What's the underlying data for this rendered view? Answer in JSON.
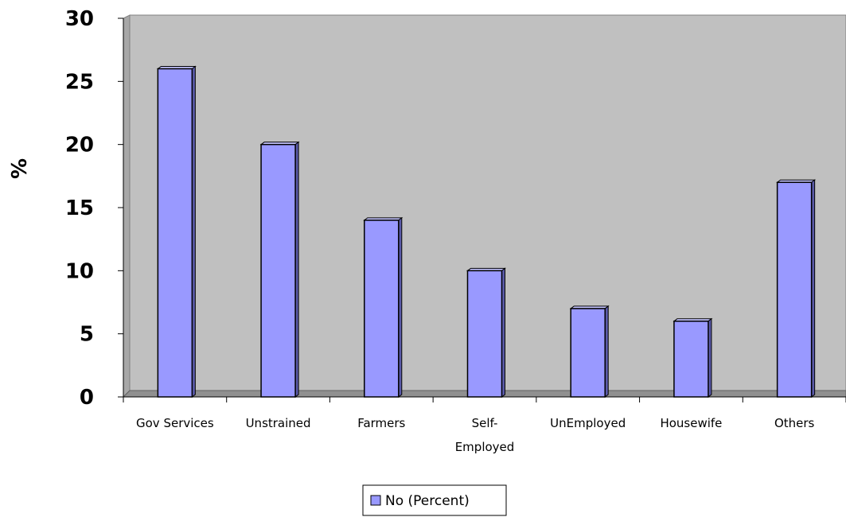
{
  "chart_data": {
    "type": "bar",
    "ylabel": "%",
    "xlabel": "",
    "title": "",
    "categories": [
      [
        "Gov Services"
      ],
      [
        "Unstrained"
      ],
      [
        "Farmers"
      ],
      [
        "Self-",
        "Employed"
      ],
      [
        "UnEmployed"
      ],
      [
        "Housewife"
      ],
      [
        "Others"
      ]
    ],
    "series": [
      {
        "name": "No (Percent)",
        "values": [
          26,
          20,
          14,
          10,
          7,
          6,
          17
        ]
      }
    ],
    "ylim": [
      0,
      30
    ],
    "yticks": [
      0,
      5,
      10,
      15,
      20,
      25,
      30
    ],
    "grid": false,
    "legend_position": "bottom",
    "colors": {
      "bar_fill": "#9999ff",
      "bar_side": "#5a5aa8",
      "plot_background": "#c0c0c0",
      "plot_wall_edge": "#808080",
      "floor": "#909090"
    }
  }
}
